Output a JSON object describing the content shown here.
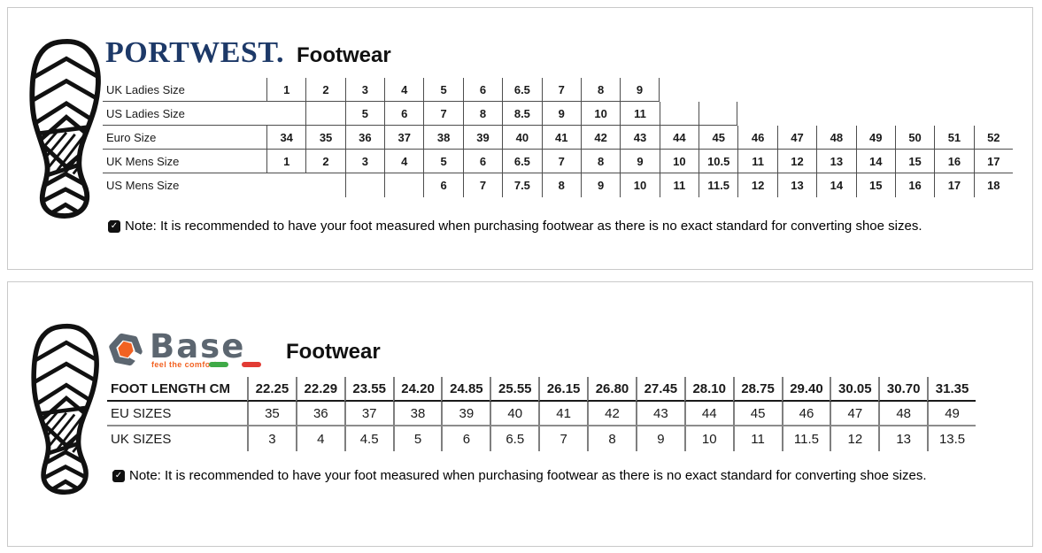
{
  "panel1": {
    "brand": "PORTWEST.",
    "title": "Footwear",
    "table": {
      "rows": [
        {
          "label": "UK Ladies Size",
          "cells": [
            "1",
            "2",
            "3",
            "4",
            "5",
            "6",
            "6.5",
            "7",
            "8",
            "9",
            null,
            null,
            null,
            null,
            null,
            null,
            null,
            null,
            null
          ]
        },
        {
          "label": "US Ladies Size",
          "cells": [
            "~",
            "",
            "5",
            "6",
            "7",
            "8",
            "8.5",
            "9",
            "10",
            "11",
            "",
            "",
            null,
            null,
            null,
            null,
            null,
            null,
            null
          ]
        },
        {
          "label": "Euro Size",
          "cells": [
            "34",
            "35",
            "36",
            "37",
            "38",
            "39",
            "40",
            "41",
            "42",
            "43",
            "44",
            "45",
            "46",
            "47",
            "48",
            "49",
            "50",
            "51",
            "52"
          ]
        },
        {
          "label": "UK Mens Size",
          "cells": [
            "1",
            "2",
            "3",
            "4",
            "5",
            "6",
            "6.5",
            "7",
            "8",
            "9",
            "10",
            "10.5",
            "11",
            "12",
            "13",
            "14",
            "15",
            "16",
            "17"
          ]
        },
        {
          "label": "US Mens Size",
          "cells": [
            null,
            null,
            "",
            "",
            "6",
            "7",
            "7.5",
            "8",
            "9",
            "10",
            "11",
            "11.5",
            "12",
            "13",
            "14",
            "15",
            "16",
            "17",
            "18"
          ]
        }
      ]
    },
    "note": "Note: It is recommended to have your foot measured when purchasing footwear as there is no exact standard for converting shoe sizes."
  },
  "panel2": {
    "brand": "Base",
    "brand_tagline": "feel the comfort",
    "title": "Footwear",
    "table": {
      "rows": [
        {
          "label": "FOOT LENGTH CM",
          "cells": [
            "22.25",
            "22.29",
            "23.55",
            "24.20",
            "24.85",
            "25.55",
            "26.15",
            "26.80",
            "27.45",
            "28.10",
            "28.75",
            "29.40",
            "30.05",
            "30.70",
            "31.35"
          ]
        },
        {
          "label": "EU SIZES",
          "cells": [
            "35",
            "36",
            "37",
            "38",
            "39",
            "40",
            "41",
            "42",
            "43",
            "44",
            "45",
            "46",
            "47",
            "48",
            "49"
          ]
        },
        {
          "label": "UK SIZES",
          "cells": [
            "3",
            "4",
            "4.5",
            "5",
            "6",
            "6.5",
            "7",
            "8",
            "9",
            "10",
            "11",
            "11.5",
            "12",
            "13",
            "13.5"
          ]
        }
      ]
    },
    "note": "Note: It is recommended to have your foot measured when purchasing footwear as there is no exact standard for converting shoe sizes."
  },
  "icons": {
    "sole": "boot-sole-icon",
    "note": "note-check-icon",
    "base_nut": "base-nut-icon"
  },
  "colors": {
    "pw-navy": "#1d3968",
    "pw-line": "#4d4d4d",
    "base-gray": "#5c6670",
    "base-orange": "#f26222",
    "base-line": "#7f7f7f",
    "flag-green": "#3faa47",
    "flag-red": "#e23b34",
    "panel-border": "#c9c9c9"
  }
}
